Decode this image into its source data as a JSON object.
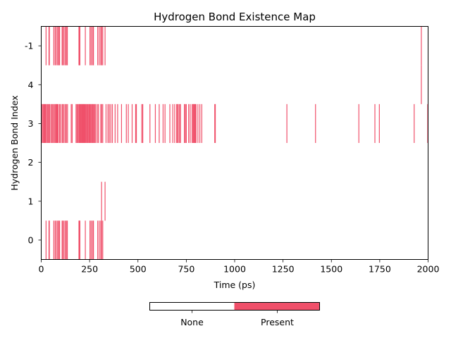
{
  "chart_data": {
    "type": "heatmap",
    "title": "Hydrogen Bond Existence Map",
    "xlabel": "Time (ps)",
    "ylabel": "Hydrogen Bond Index",
    "xlim": [
      0,
      2000
    ],
    "x_ticks": [
      "0",
      "250",
      "500",
      "750",
      "1000",
      "1250",
      "1500",
      "1750",
      "2000"
    ],
    "x_tick_values": [
      0,
      250,
      500,
      750,
      1000,
      1250,
      1500,
      1750,
      2000
    ],
    "rows": [
      {
        "label": "-1",
        "times": [
          25,
          40,
          42,
          65,
          72,
          78,
          85,
          90,
          95,
          108,
          112,
          118,
          125,
          130,
          135,
          195,
          198,
          200,
          228,
          252,
          258,
          265,
          270,
          292,
          300,
          308,
          312,
          318,
          330,
          1965
        ]
      },
      {
        "label": "4",
        "times": [
          1965
        ]
      },
      {
        "label": "3",
        "times": [
          5,
          10,
          14,
          18,
          22,
          27,
          32,
          37,
          42,
          45,
          52,
          57,
          62,
          68,
          72,
          77,
          80,
          84,
          88,
          95,
          100,
          108,
          112,
          118,
          125,
          130,
          136,
          155,
          160,
          180,
          185,
          190,
          195,
          198,
          202,
          206,
          210,
          213,
          217,
          220,
          224,
          228,
          232,
          236,
          240,
          245,
          248,
          252,
          256,
          260,
          265,
          268,
          272,
          277,
          282,
          290,
          296,
          308,
          312,
          318,
          335,
          345,
          352,
          360,
          368,
          382,
          395,
          415,
          440,
          450,
          470,
          488,
          492,
          520,
          525,
          562,
          590,
          610,
          630,
          640,
          665,
          680,
          690,
          700,
          705,
          708,
          715,
          720,
          740,
          745,
          750,
          762,
          770,
          780,
          785,
          788,
          792,
          796,
          800,
          810,
          820,
          830,
          897,
          900,
          1270,
          1418,
          1642,
          1725,
          1748,
          1928,
          1998
        ]
      },
      {
        "label": "2",
        "times": []
      },
      {
        "label": "1",
        "times": [
          312,
          330
        ]
      },
      {
        "label": "0",
        "times": [
          25,
          40,
          42,
          65,
          72,
          78,
          85,
          90,
          95,
          108,
          112,
          118,
          125,
          130,
          135,
          195,
          198,
          200,
          228,
          252,
          258,
          265,
          270,
          292,
          300,
          308,
          312,
          318
        ]
      }
    ],
    "colorbar": {
      "labels": [
        "None",
        "Present"
      ],
      "colors": [
        "#ffffff",
        "#f0506a"
      ]
    },
    "present_color": "#f0506a"
  }
}
